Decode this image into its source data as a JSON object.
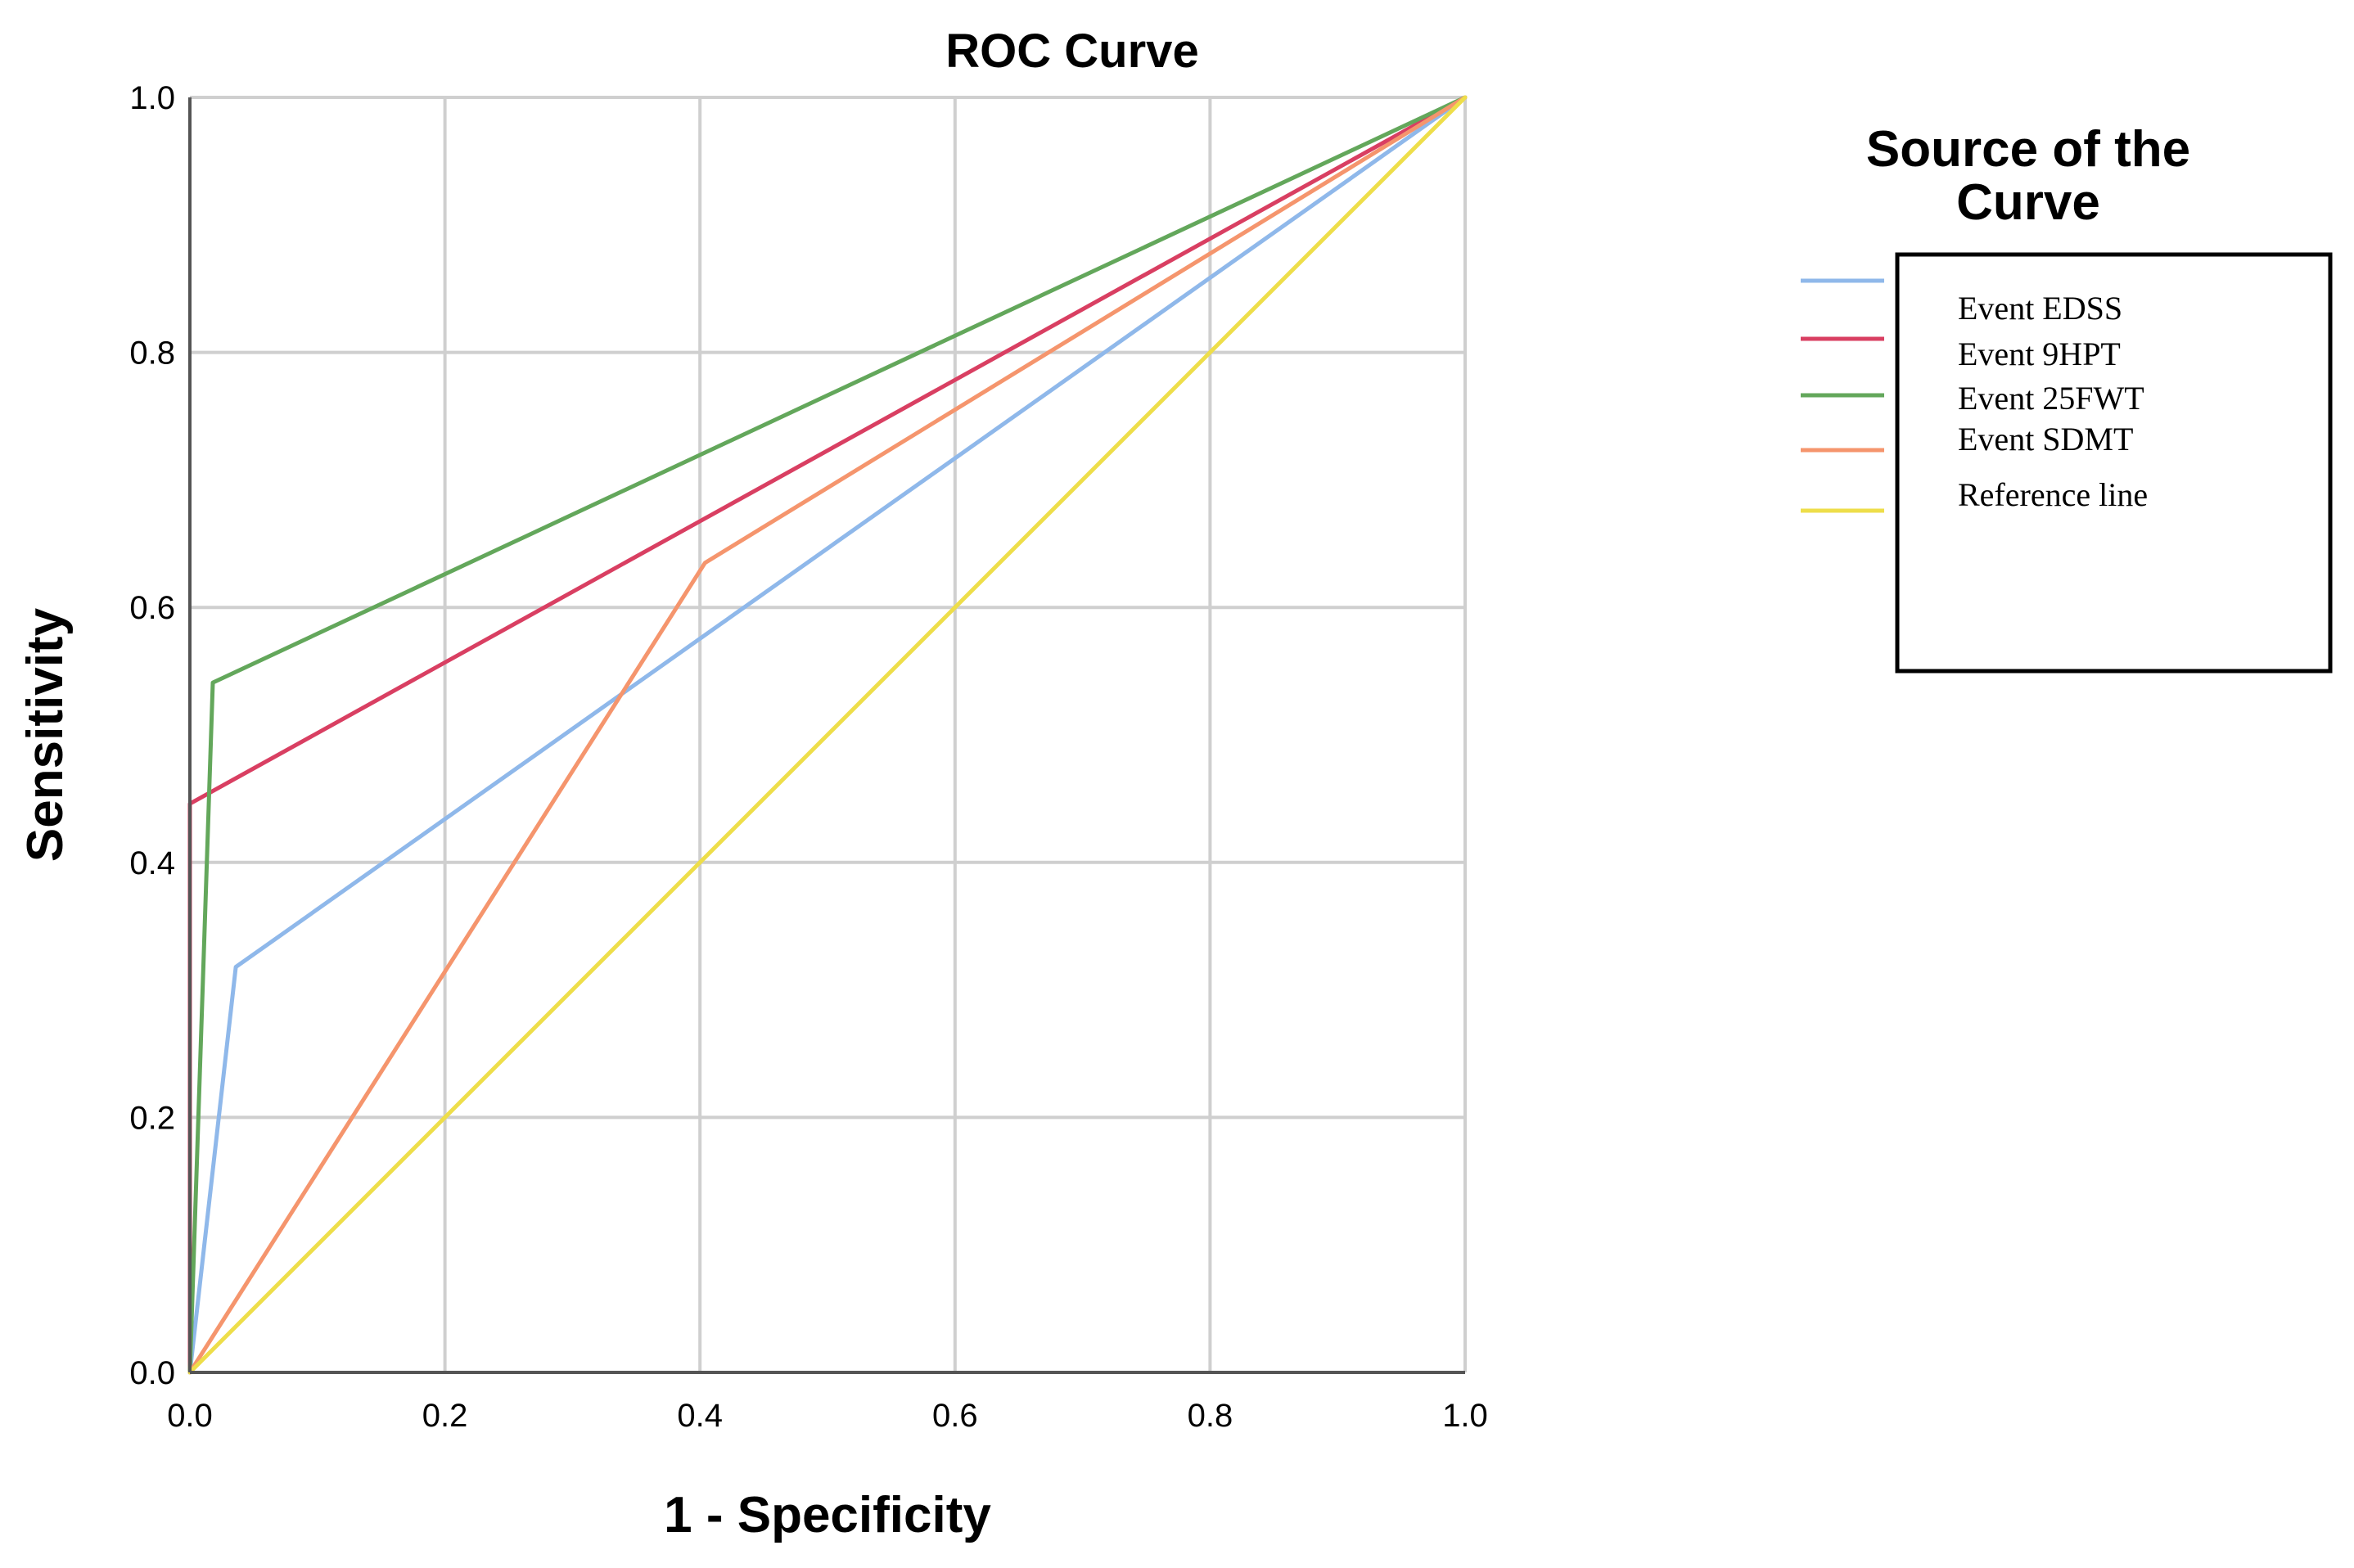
{
  "chart_data": {
    "type": "line",
    "title": "ROC Curve",
    "xlabel": "1 - Specificity",
    "ylabel": "Sensitivity",
    "xlim": [
      0.0,
      1.0
    ],
    "ylim": [
      0.0,
      1.0
    ],
    "grid": true,
    "x_ticks": [
      "0.0",
      "0.2",
      "0.4",
      "0.6",
      "0.8",
      "1.0"
    ],
    "y_ticks": [
      "0.0",
      "0.2",
      "0.4",
      "0.6",
      "0.8",
      "1.0"
    ],
    "legend": {
      "title": "Source of the Curve",
      "placement": "right"
    },
    "series": [
      {
        "name": "Event EDSS",
        "color": "#8fb8ea",
        "x": [
          0.0,
          0.036,
          1.0
        ],
        "y": [
          0.0,
          0.318,
          1.0
        ]
      },
      {
        "name": "Event 9HPT",
        "color": "#d93f62",
        "x": [
          0.0,
          0.0,
          1.0
        ],
        "y": [
          0.0,
          0.446,
          1.0
        ]
      },
      {
        "name": "Event 25FWT",
        "color": "#63a75b",
        "x": [
          0.0,
          0.018,
          1.0
        ],
        "y": [
          0.0,
          0.541,
          1.0
        ]
      },
      {
        "name": "Event SDMT",
        "color": "#f5956d",
        "x": [
          0.0,
          0.404,
          1.0
        ],
        "y": [
          0.0,
          0.635,
          1.0
        ]
      },
      {
        "name": "Reference line",
        "color": "#eede4a",
        "x": [
          0.0,
          1.0
        ],
        "y": [
          0.0,
          1.0
        ]
      }
    ]
  }
}
